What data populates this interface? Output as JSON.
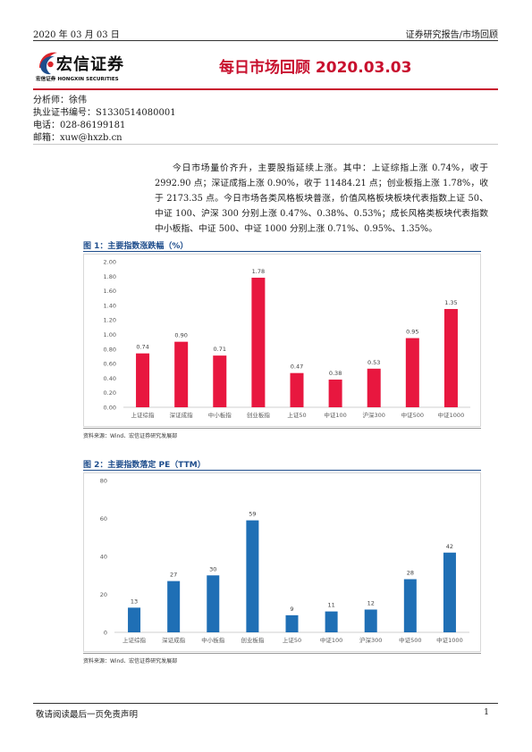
{
  "header": {
    "date": "2020 年 03 月 03 日",
    "category": "证券研究报告/市场回顾"
  },
  "logo": {
    "name_cn": "宏信证券",
    "tagline": "宏信证券  HONGXIN SECURITIES",
    "colors": {
      "red": "#d9252b",
      "blue": "#1e4d8c"
    }
  },
  "report_title": "每日市场回顾 2020.03.03",
  "analyst": {
    "name_line": "分析师：徐伟",
    "cert_line": "执业证书编号：S1330514080001",
    "phone_line": "电话：028-86199181",
    "email_line": "邮箱：xuw@hxzb.cn"
  },
  "summary": "今日市场量价齐升，主要股指延续上涨。其中：上证综指上涨 0.74%，收于 2992.90 点；深证成指上涨 0.90%，收于 11484.21 点；创业板指上涨 1.78%，收于 2173.35 点。今日市场各类风格板块普涨，价值风格板块板块代表指数上证 50、中证 100、沪深 300 分别上涨 0.47%、0.38%、0.53%；成长风格类板块代表指数中小板指、中证 500、中证 1000 分别上涨 0.71%、0.95%、1.35%。",
  "figures": [
    {
      "title": "图 1：主要指数涨跌幅（%）",
      "source": "资料来源：Wind、宏信证券研究发展部"
    },
    {
      "title": "图 2：主要指数落定 PE（TTM）",
      "source": "资料来源：Wind、宏信证券研究发展部"
    }
  ],
  "chart_data": [
    {
      "type": "bar",
      "title": "图 1：主要指数涨跌幅（%）",
      "categories": [
        "上证综指",
        "深证成指",
        "中小板指",
        "创业板指",
        "上证50",
        "中证100",
        "沪深300",
        "中证500",
        "中证1000"
      ],
      "values": [
        0.74,
        0.9,
        0.71,
        1.78,
        0.47,
        0.38,
        0.53,
        0.95,
        1.35
      ],
      "value_labels": [
        "0.74",
        "0.90",
        "0.71",
        "1.78",
        "0.47",
        "0.38",
        "0.53",
        "0.95",
        "1.35"
      ],
      "ylim": [
        0,
        2.0
      ],
      "yticks": [
        "0.00",
        "0.20",
        "0.40",
        "0.60",
        "0.80",
        "1.00",
        "1.20",
        "1.40",
        "1.60",
        "1.80",
        "2.00"
      ],
      "grid": false,
      "color": "#e8173f"
    },
    {
      "type": "bar",
      "title": "图 2：主要指数落定 PE（TTM）",
      "categories": [
        "上证综指",
        "深证成指",
        "中小板指",
        "创业板指",
        "上证50",
        "中证100",
        "沪深300",
        "中证500",
        "中证1000"
      ],
      "values": [
        13,
        27,
        30,
        59,
        9,
        11,
        12,
        28,
        42
      ],
      "value_labels": [
        "13",
        "27",
        "30",
        "59",
        "9",
        "11",
        "12",
        "28",
        "42"
      ],
      "ylim": [
        0,
        80
      ],
      "yticks": [
        "0",
        "20",
        "40",
        "60",
        "80"
      ],
      "grid": false,
      "color": "#1f6fb5"
    }
  ],
  "footer": {
    "disclaimer": "敬请阅读最后一页免责声明",
    "page": "1"
  }
}
